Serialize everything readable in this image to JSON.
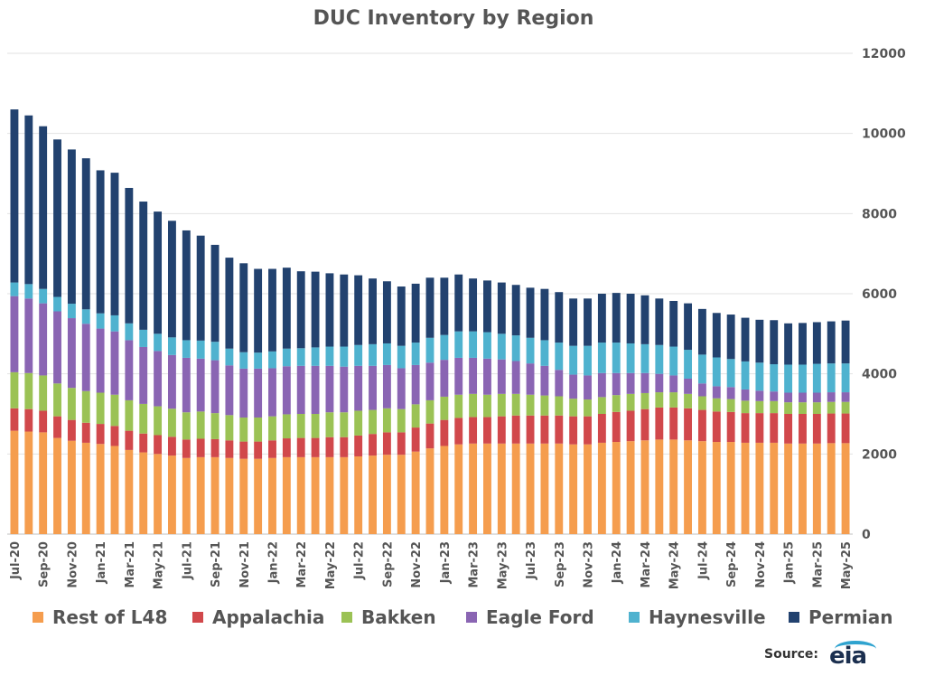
{
  "chart_data": {
    "type": "bar",
    "stacked": true,
    "title": "DUC Inventory by Region",
    "ylim": [
      0,
      12000
    ],
    "yticks": [
      0,
      2000,
      4000,
      6000,
      8000,
      10000,
      12000
    ],
    "y_axis_position": "right",
    "grid": true,
    "legend_position": "bottom",
    "categories": [
      "Jul-20",
      "Aug-20",
      "Sep-20",
      "Oct-20",
      "Nov-20",
      "Dec-20",
      "Jan-21",
      "Feb-21",
      "Mar-21",
      "Apr-21",
      "May-21",
      "Jun-21",
      "Jul-21",
      "Aug-21",
      "Sep-21",
      "Oct-21",
      "Nov-21",
      "Dec-21",
      "Jan-22",
      "Feb-22",
      "Mar-22",
      "Apr-22",
      "May-22",
      "Jun-22",
      "Jul-22",
      "Aug-22",
      "Sep-22",
      "Oct-22",
      "Nov-22",
      "Dec-22",
      "Jan-23",
      "Feb-23",
      "Mar-23",
      "Apr-23",
      "May-23",
      "Jun-23",
      "Jul-23",
      "Aug-23",
      "Sep-23",
      "Oct-23",
      "Nov-23",
      "Dec-23",
      "Jan-24",
      "Feb-24",
      "Mar-24",
      "Apr-24",
      "May-24",
      "Jun-24",
      "Jul-24",
      "Aug-24",
      "Sep-24",
      "Oct-24",
      "Nov-24",
      "Dec-24",
      "Jan-25",
      "Feb-25",
      "Mar-25",
      "Apr-25",
      "May-25"
    ],
    "tick_labels": [
      "Jul-20",
      "Sep-20",
      "Nov-20",
      "Jan-21",
      "Mar-21",
      "May-21",
      "Jul-21",
      "Sep-21",
      "Nov-21",
      "Jan-22",
      "Mar-22",
      "May-22",
      "Jul-22",
      "Sep-22",
      "Nov-22",
      "Jan-23",
      "Mar-23",
      "May-23",
      "Jul-23",
      "Sep-23",
      "Nov-23",
      "Jan-24",
      "Mar-24",
      "May-24",
      "Jul-24",
      "Sep-24",
      "Nov-24",
      "Jan-25",
      "Mar-25",
      "May-25"
    ],
    "totals": [
      10600,
      10450,
      10180,
      9850,
      9600,
      9380,
      9080,
      9020,
      8640,
      8300,
      8050,
      7820,
      7580,
      7450,
      7220,
      6900,
      6760,
      6620,
      6620,
      6650,
      6560,
      6550,
      6510,
      6480,
      6460,
      6380,
      6310,
      6180,
      6250,
      6400,
      6400,
      6480,
      6380,
      6330,
      6280,
      6220,
      6150,
      6120,
      6040,
      5880,
      5880,
      6000,
      6020,
      6000,
      5960,
      5880,
      5820,
      5760,
      5620,
      5520,
      5480,
      5400,
      5350,
      5340,
      5260,
      5270,
      5290,
      5310,
      5330
    ],
    "series": [
      {
        "name": "Rest of L48",
        "color": "#f59d4e",
        "values": [
          2580,
          2560,
          2540,
          2400,
          2330,
          2280,
          2250,
          2200,
          2100,
          2040,
          2000,
          1960,
          1900,
          1920,
          1920,
          1900,
          1880,
          1880,
          1900,
          1920,
          1920,
          1920,
          1920,
          1920,
          1940,
          1960,
          1980,
          1980,
          2060,
          2140,
          2200,
          2240,
          2260,
          2260,
          2260,
          2260,
          2260,
          2260,
          2260,
          2240,
          2240,
          2280,
          2300,
          2320,
          2340,
          2360,
          2360,
          2340,
          2320,
          2300,
          2300,
          2280,
          2280,
          2280,
          2260,
          2260,
          2260,
          2270,
          2270
        ]
      },
      {
        "name": "Appalachia",
        "color": "#d1484b",
        "values": [
          560,
          560,
          540,
          540,
          520,
          500,
          500,
          500,
          480,
          470,
          470,
          470,
          460,
          460,
          450,
          440,
          430,
          430,
          440,
          470,
          480,
          480,
          500,
          500,
          520,
          540,
          560,
          560,
          600,
          620,
          650,
          660,
          660,
          660,
          680,
          700,
          700,
          700,
          700,
          700,
          700,
          720,
          750,
          760,
          780,
          800,
          800,
          800,
          780,
          760,
          750,
          740,
          740,
          740,
          740,
          740,
          740,
          740,
          740
        ]
      },
      {
        "name": "Bakken",
        "color": "#9bc255",
        "values": [
          900,
          900,
          880,
          820,
          800,
          790,
          780,
          780,
          760,
          740,
          720,
          700,
          680,
          680,
          650,
          630,
          600,
          600,
          600,
          600,
          600,
          600,
          620,
          620,
          620,
          600,
          600,
          580,
          580,
          580,
          580,
          580,
          580,
          560,
          560,
          540,
          520,
          500,
          480,
          440,
          420,
          420,
          420,
          420,
          400,
          380,
          380,
          360,
          340,
          330,
          320,
          310,
          300,
          300,
          290,
          290,
          290,
          290,
          290
        ]
      },
      {
        "name": "Eagle Ford",
        "color": "#8a65b3",
        "values": [
          1900,
          1860,
          1800,
          1800,
          1740,
          1680,
          1600,
          1580,
          1500,
          1420,
          1380,
          1340,
          1360,
          1320,
          1320,
          1240,
          1220,
          1220,
          1200,
          1200,
          1200,
          1200,
          1160,
          1140,
          1120,
          1100,
          1080,
          1020,
          980,
          940,
          920,
          920,
          900,
          900,
          860,
          820,
          780,
          740,
          660,
          600,
          600,
          600,
          550,
          520,
          500,
          460,
          420,
          380,
          320,
          300,
          300,
          280,
          260,
          240,
          240,
          240,
          240,
          240,
          240
        ]
      },
      {
        "name": "Haynesville",
        "color": "#4fb2cf",
        "values": [
          340,
          360,
          360,
          360,
          360,
          360,
          380,
          400,
          420,
          430,
          430,
          440,
          440,
          450,
          460,
          420,
          410,
          400,
          420,
          440,
          440,
          460,
          480,
          500,
          520,
          540,
          540,
          560,
          560,
          620,
          620,
          660,
          660,
          660,
          640,
          640,
          640,
          640,
          680,
          720,
          740,
          760,
          760,
          740,
          720,
          720,
          720,
          720,
          720,
          720,
          700,
          700,
          700,
          680,
          700,
          700,
          720,
          720,
          720
        ]
      },
      {
        "name": "Permian",
        "color": "#22426f",
        "values": [
          4320,
          4210,
          4060,
          3930,
          3850,
          3770,
          3570,
          3560,
          3380,
          3200,
          3050,
          2910,
          2740,
          2620,
          2420,
          2270,
          2220,
          2090,
          2060,
          2020,
          1920,
          1890,
          1830,
          1800,
          1740,
          1640,
          1550,
          1480,
          1470,
          1500,
          1430,
          1420,
          1320,
          1290,
          1280,
          1260,
          1250,
          1280,
          1260,
          1180,
          1180,
          1220,
          1240,
          1240,
          1220,
          1160,
          1140,
          1160,
          1140,
          1110,
          1110,
          1090,
          1070,
          1100,
          1030,
          1040,
          1040,
          1050,
          1070
        ]
      }
    ]
  },
  "source": {
    "label": "Source:",
    "logo": "eia"
  }
}
